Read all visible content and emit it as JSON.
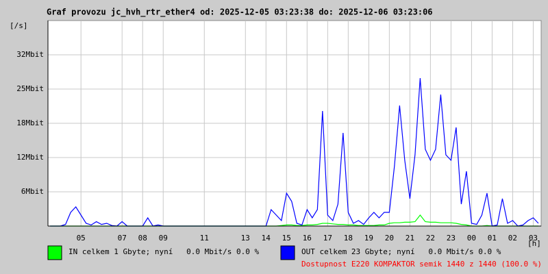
{
  "chart_data": {
    "type": "line",
    "title": "Graf provozu jc_hvh_rtr_ether4 od: 2025-12-05 03:23:38 do: 2025-12-06 03:23:06",
    "y_label": "[/s]",
    "x_label": "[h]",
    "xlim": [
      3.394,
      27.385
    ],
    "xticks": [
      {
        "value": 5,
        "label": "05"
      },
      {
        "value": 7,
        "label": "07"
      },
      {
        "value": 8,
        "label": "08"
      },
      {
        "value": 9,
        "label": "09"
      },
      11,
      13,
      14,
      15,
      16,
      17,
      18,
      19,
      20,
      21,
      22,
      23,
      {
        "value": 24,
        "label": "00"
      },
      {
        "value": 25,
        "label": "01"
      },
      {
        "value": 26,
        "label": "02"
      },
      {
        "value": 27,
        "label": "03"
      }
    ],
    "ylim": [
      0,
      37.5
    ],
    "yticks": [
      {
        "value": 6.25,
        "label": "6Mbit"
      },
      {
        "value": 12.5,
        "label": "12Mbit"
      },
      {
        "value": 18.75,
        "label": "18Mbit"
      },
      {
        "value": 25,
        "label": "25Mbit"
      },
      {
        "value": 31.25,
        "label": "32Mbit"
      }
    ],
    "grid": true,
    "x": [
      3.5,
      3.75,
      4,
      4.25,
      4.5,
      4.75,
      5,
      5.25,
      5.5,
      5.75,
      6,
      6.25,
      6.5,
      6.75,
      7,
      7.25,
      7.5,
      7.75,
      8,
      8.25,
      8.5,
      8.75,
      9,
      9.25,
      9.5,
      9.75,
      10,
      10.25,
      10.5,
      10.75,
      11,
      11.25,
      11.5,
      11.75,
      12,
      12.25,
      12.5,
      12.75,
      13,
      13.25,
      13.5,
      13.75,
      14,
      14.25,
      14.5,
      14.75,
      15,
      15.25,
      15.5,
      15.75,
      16,
      16.25,
      16.5,
      16.75,
      17,
      17.25,
      17.5,
      17.75,
      18,
      18.25,
      18.5,
      18.75,
      19,
      19.25,
      19.5,
      19.75,
      20,
      20.25,
      20.5,
      20.75,
      21,
      21.25,
      21.5,
      21.75,
      22,
      22.25,
      22.5,
      22.75,
      23,
      23.25,
      23.5,
      23.75,
      24,
      24.25,
      24.5,
      24.75,
      25,
      25.25,
      25.5,
      25.75,
      26,
      26.25,
      26.5,
      26.75,
      27,
      27.25
    ],
    "series": [
      {
        "name": "IN celkem 1 Gbyte; nyní   0.0 Mbit/s 0.0 %",
        "color": "#00ff00",
        "values": [
          0,
          0,
          0,
          0,
          0,
          0,
          0,
          0,
          0,
          0,
          0,
          0,
          0,
          0,
          0,
          0,
          0,
          0,
          0,
          0,
          0,
          0,
          0,
          0,
          0,
          0,
          0,
          0,
          0,
          0,
          0,
          0,
          0,
          0,
          0,
          0,
          0,
          0,
          0,
          0,
          0,
          0,
          0,
          0,
          0,
          0.1,
          0.2,
          0.2,
          0.1,
          0.1,
          0.2,
          0.2,
          0.3,
          0.5,
          0.5,
          0.4,
          0.3,
          0.3,
          0.2,
          0.2,
          0.1,
          0.1,
          0.1,
          0.1,
          0.2,
          0.2,
          0.5,
          0.6,
          0.6,
          0.7,
          0.7,
          0.8,
          2,
          0.8,
          0.7,
          0.7,
          0.6,
          0.6,
          0.6,
          0.5,
          0.3,
          0.2,
          0,
          0,
          0,
          0.1,
          0,
          0,
          0,
          0,
          0,
          0,
          0,
          0,
          0,
          0
        ]
      },
      {
        "name": "OUT celkem 23 Gbyte; nyní   0.0 Mbit/s 0.0 %",
        "color": "#0000ff",
        "values": [
          0,
          0,
          0,
          0.3,
          2.5,
          3.5,
          2,
          0.5,
          0.2,
          0.8,
          0.3,
          0.5,
          0.1,
          0,
          0.8,
          0,
          0,
          0,
          0,
          1.5,
          0,
          0.2,
          0,
          0,
          0,
          0,
          0,
          0,
          0,
          0,
          0,
          0,
          0,
          0,
          0,
          0,
          0,
          0,
          0,
          0,
          0,
          0,
          0,
          3,
          2,
          1,
          6,
          4.5,
          0.5,
          0.2,
          3,
          1.5,
          3,
          21,
          2,
          1,
          4,
          17,
          2.5,
          0.5,
          1,
          0.3,
          1.5,
          2.5,
          1.5,
          2.5,
          2.5,
          11,
          22,
          12,
          5,
          13,
          27,
          14,
          12,
          14,
          24,
          13,
          12,
          18,
          4,
          10,
          0.5,
          0.3,
          2,
          6,
          0,
          0.2,
          5,
          0.5,
          1,
          0,
          0.2,
          1,
          1.5,
          0.5
        ]
      }
    ],
    "footer": "Dostupnost E220 KOMPAKTOR semik 1440 z 1440 (100.0 %)"
  }
}
